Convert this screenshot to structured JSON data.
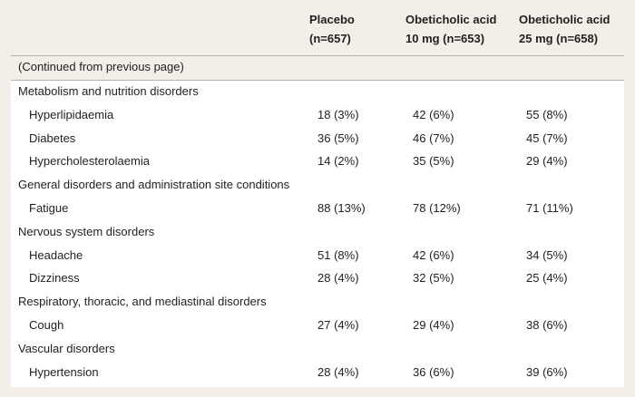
{
  "table": {
    "columns": [
      {
        "lines": [
          "Placebo",
          "(n=657)"
        ]
      },
      {
        "lines": [
          "Obeticholic acid",
          "10 mg (n=653)"
        ]
      },
      {
        "lines": [
          "Obeticholic acid",
          "25 mg (n=658)"
        ]
      }
    ],
    "note": "(Continued from previous page)",
    "groups": [
      {
        "label": "Metabolism and nutrition disorders",
        "rows": [
          {
            "label": "Hyperlipidaemia",
            "cells": [
              "18 (3%)",
              "42 (6%)",
              "55 (8%)"
            ]
          },
          {
            "label": "Diabetes",
            "cells": [
              "36 (5%)",
              "46 (7%)",
              "45 (7%)"
            ]
          },
          {
            "label": "Hypercholesterolaemia",
            "cells": [
              "14 (2%)",
              "35 (5%)",
              "29 (4%)"
            ]
          }
        ]
      },
      {
        "label": "General disorders and administration site conditions",
        "rows": [
          {
            "label": "Fatigue",
            "cells": [
              "88 (13%)",
              "78 (12%)",
              "71 (11%)"
            ]
          }
        ]
      },
      {
        "label": "Nervous system disorders",
        "rows": [
          {
            "label": "Headache",
            "cells": [
              "51 (8%)",
              "42 (6%)",
              "34 (5%)"
            ]
          },
          {
            "label": "Dizziness",
            "cells": [
              "28 (4%)",
              "32 (5%)",
              "25 (4%)"
            ]
          }
        ]
      },
      {
        "label": "Respiratory, thoracic, and mediastinal disorders",
        "rows": [
          {
            "label": "Cough",
            "cells": [
              "27 (4%)",
              "29 (4%)",
              "38 (6%)"
            ]
          }
        ]
      },
      {
        "label": "Vascular disorders",
        "rows": [
          {
            "label": "Hypertension",
            "cells": [
              "28 (4%)",
              "36 (6%)",
              "39 (6%)"
            ]
          }
        ]
      }
    ]
  }
}
